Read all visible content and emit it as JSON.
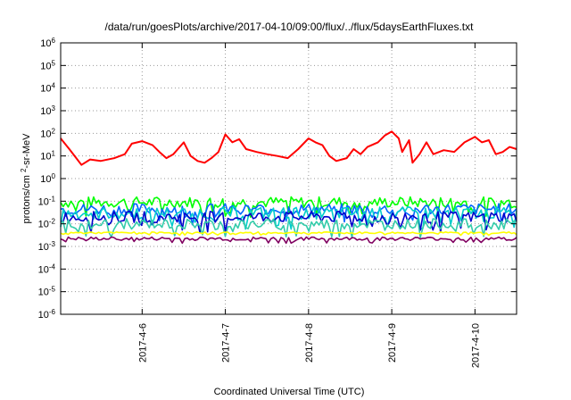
{
  "chart_data": {
    "type": "line",
    "title": "/data/run/goesPlots/archive/2017-04-10/09:00/flux/../flux/5daysEarthFluxes.txt",
    "xlabel": "Coordinated Universal Time (UTC)",
    "ylabel": "protons/cm2-sr-MeV",
    "yscale": "log",
    "ylim": [
      1e-06,
      1000000.0
    ],
    "yticks": [
      {
        "base": "10",
        "exp": "-6"
      },
      {
        "base": "10",
        "exp": "-5"
      },
      {
        "base": "10",
        "exp": "-4"
      },
      {
        "base": "10",
        "exp": "-3"
      },
      {
        "base": "10",
        "exp": "-2"
      },
      {
        "base": "10",
        "exp": "-1"
      },
      {
        "base": "10",
        "exp": "0"
      },
      {
        "base": "10",
        "exp": "1"
      },
      {
        "base": "10",
        "exp": "2"
      },
      {
        "base": "10",
        "exp": "3"
      },
      {
        "base": "10",
        "exp": "4"
      },
      {
        "base": "10",
        "exp": "5"
      },
      {
        "base": "10",
        "exp": "6"
      }
    ],
    "xlim": [
      "2017-04-05 00:30",
      "2017-04-10 12:00"
    ],
    "xticks": [
      "2017-4-6",
      "2017-4-7",
      "2017-4-8",
      "2017-4-9",
      "2017-4-10"
    ],
    "grid": true,
    "series": [
      {
        "color": "#ff0000",
        "values": [
          {
            "x": "2017-04-05 00:30",
            "y": 60
          },
          {
            "x": "2017-04-05 03:00",
            "y": 20
          },
          {
            "x": "2017-04-05 05:00",
            "y": 8
          },
          {
            "x": "2017-04-05 06:30",
            "y": 4
          },
          {
            "x": "2017-04-05 09:00",
            "y": 7
          },
          {
            "x": "2017-04-05 12:00",
            "y": 6
          },
          {
            "x": "2017-04-05 16:00",
            "y": 8
          },
          {
            "x": "2017-04-05 19:00",
            "y": 12
          },
          {
            "x": "2017-04-05 21:00",
            "y": 35
          },
          {
            "x": "2017-04-06 00:00",
            "y": 45
          },
          {
            "x": "2017-04-06 03:00",
            "y": 30
          },
          {
            "x": "2017-04-06 05:00",
            "y": 15
          },
          {
            "x": "2017-04-06 07:00",
            "y": 8
          },
          {
            "x": "2017-04-06 09:00",
            "y": 12
          },
          {
            "x": "2017-04-06 12:00",
            "y": 40
          },
          {
            "x": "2017-04-06 14:00",
            "y": 10
          },
          {
            "x": "2017-04-06 16:00",
            "y": 6
          },
          {
            "x": "2017-04-06 18:00",
            "y": 5
          },
          {
            "x": "2017-04-06 20:00",
            "y": 8
          },
          {
            "x": "2017-04-06 22:00",
            "y": 15
          },
          {
            "x": "2017-04-07 00:00",
            "y": 90
          },
          {
            "x": "2017-04-07 02:00",
            "y": 40
          },
          {
            "x": "2017-04-07 04:00",
            "y": 55
          },
          {
            "x": "2017-04-07 06:00",
            "y": 20
          },
          {
            "x": "2017-04-07 09:00",
            "y": 15
          },
          {
            "x": "2017-04-07 12:00",
            "y": 12
          },
          {
            "x": "2017-04-07 15:00",
            "y": 10
          },
          {
            "x": "2017-04-07 18:00",
            "y": 8
          },
          {
            "x": "2017-04-07 21:00",
            "y": 20
          },
          {
            "x": "2017-04-08 00:00",
            "y": 60
          },
          {
            "x": "2017-04-08 02:00",
            "y": 40
          },
          {
            "x": "2017-04-08 04:00",
            "y": 30
          },
          {
            "x": "2017-04-08 06:00",
            "y": 10
          },
          {
            "x": "2017-04-08 08:00",
            "y": 6
          },
          {
            "x": "2017-04-08 11:00",
            "y": 8
          },
          {
            "x": "2017-04-08 13:00",
            "y": 20
          },
          {
            "x": "2017-04-08 15:00",
            "y": 12
          },
          {
            "x": "2017-04-08 17:00",
            "y": 25
          },
          {
            "x": "2017-04-08 20:00",
            "y": 40
          },
          {
            "x": "2017-04-08 22:00",
            "y": 80
          },
          {
            "x": "2017-04-09 00:00",
            "y": 120
          },
          {
            "x": "2017-04-09 02:00",
            "y": 60
          },
          {
            "x": "2017-04-09 03:00",
            "y": 15
          },
          {
            "x": "2017-04-09 05:00",
            "y": 50
          },
          {
            "x": "2017-04-09 06:00",
            "y": 5
          },
          {
            "x": "2017-04-09 08:00",
            "y": 12
          },
          {
            "x": "2017-04-09 10:00",
            "y": 40
          },
          {
            "x": "2017-04-09 12:00",
            "y": 12
          },
          {
            "x": "2017-04-09 15:00",
            "y": 18
          },
          {
            "x": "2017-04-09 18:00",
            "y": 15
          },
          {
            "x": "2017-04-09 21:00",
            "y": 40
          },
          {
            "x": "2017-04-10 00:00",
            "y": 70
          },
          {
            "x": "2017-04-10 02:00",
            "y": 40
          },
          {
            "x": "2017-04-10 04:00",
            "y": 50
          },
          {
            "x": "2017-04-10 06:00",
            "y": 12
          },
          {
            "x": "2017-04-10 08:00",
            "y": 15
          },
          {
            "x": "2017-04-10 10:00",
            "y": 25
          },
          {
            "x": "2017-04-10 12:00",
            "y": 20
          }
        ]
      },
      {
        "color": "#00ff00",
        "level": 0.09,
        "spread": 0.5
      },
      {
        "color": "#0066ff",
        "level": 0.045,
        "spread": 0.5
      },
      {
        "color": "#00cccc",
        "level": 0.03,
        "spread": 0.55
      },
      {
        "color": "#0000cc",
        "level": 0.02,
        "spread": 0.5
      },
      {
        "color": "#33ccaa",
        "level": 0.01,
        "spread": 0.45
      },
      {
        "color": "#ffff00",
        "level": 0.004,
        "spread": 0.08
      },
      {
        "color": "#800060",
        "level": 0.0022,
        "spread": 0.15
      }
    ]
  }
}
